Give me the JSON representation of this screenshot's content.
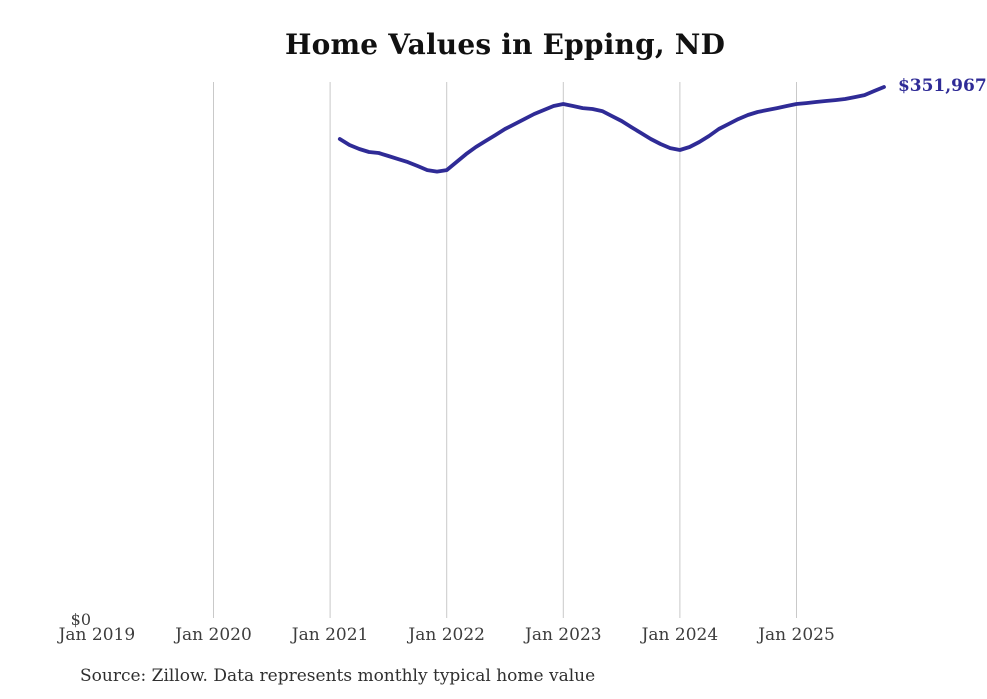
{
  "page": {
    "title": "Home Values in Epping, ND",
    "source_note": "Source: Zillow. Data represents monthly typical home value"
  },
  "chart_data": {
    "type": "line",
    "title": "Home Values in Epping, ND",
    "ylabel": "",
    "xlabel": "",
    "ylim": [
      0,
      351967
    ],
    "grid": "vertical-only",
    "legend": "none",
    "line_color": "#2f2b96",
    "gridline_color": "#c9c9c9",
    "tick_label_color": "#3d3d3d",
    "end_label": "$351,967",
    "y_zero_label": "$0",
    "x_tick_labels": [
      "Jan 2019",
      "Jan 2020",
      "Jan 2021",
      "Jan 2022",
      "Jan 2023",
      "Jan 2024",
      "Jan 2025"
    ],
    "x_tick_has_gridline": [
      false,
      true,
      true,
      true,
      true,
      true,
      true
    ],
    "x": [
      "Feb 2021",
      "Mar 2021",
      "Apr 2021",
      "May 2021",
      "Jun 2021",
      "Jul 2021",
      "Aug 2021",
      "Sep 2021",
      "Oct 2021",
      "Nov 2021",
      "Dec 2021",
      "Jan 2022",
      "Feb 2022",
      "Mar 2022",
      "Apr 2022",
      "May 2022",
      "Jun 2022",
      "Jul 2022",
      "Aug 2022",
      "Sep 2022",
      "Oct 2022",
      "Nov 2022",
      "Dec 2022",
      "Jan 2023",
      "Feb 2023",
      "Mar 2023",
      "Apr 2023",
      "May 2023",
      "Jun 2023",
      "Jul 2023",
      "Aug 2023",
      "Sep 2023",
      "Oct 2023",
      "Nov 2023",
      "Dec 2023",
      "Jan 2024",
      "Feb 2024",
      "Mar 2024",
      "Apr 2024",
      "May 2024",
      "Jun 2024",
      "Jul 2024",
      "Aug 2024",
      "Sep 2024",
      "Oct 2024",
      "Nov 2024",
      "Dec 2024",
      "Jan 2025",
      "Feb 2025",
      "Mar 2025",
      "Apr 2025",
      "May 2025",
      "Jun 2025",
      "Jul 2025",
      "Aug 2025",
      "Sep 2025",
      "Oct 2025"
    ],
    "values": [
      317500,
      313500,
      310900,
      308900,
      308200,
      306200,
      304200,
      302200,
      299600,
      296900,
      295900,
      296900,
      302200,
      307500,
      312200,
      316200,
      320100,
      324100,
      327400,
      330700,
      334100,
      336700,
      339400,
      340700,
      339400,
      338000,
      337400,
      336000,
      332700,
      329400,
      325400,
      321500,
      317500,
      314200,
      311500,
      310200,
      312200,
      315500,
      319500,
      324100,
      327400,
      330700,
      333400,
      335400,
      336700,
      338000,
      339400,
      340700,
      341300,
      342000,
      342700,
      343300,
      344000,
      345300,
      346600,
      349300,
      351967
    ]
  }
}
